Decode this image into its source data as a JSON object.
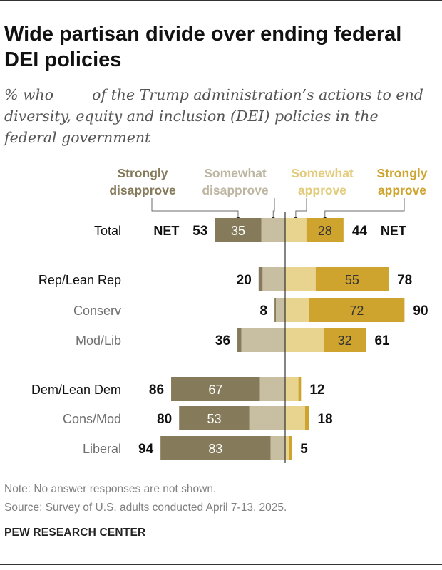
{
  "title": "Wide partisan divide over ending federal DEI policies",
  "subtitle": "% who ____ of the Trump administration’s actions to end diversity, equity and inclusion (DEI) policies in the federal government",
  "colors": {
    "strongly_disapprove": "#857a5a",
    "somewhat_disapprove": "#c8bea2",
    "somewhat_approve": "#e8d48f",
    "strongly_approve": "#cfa42e"
  },
  "chart_data": {
    "type": "bar",
    "subtype": "diverging-stacked",
    "title": "Wide partisan divide over ending federal DEI policies",
    "legend": [
      {
        "key": "strongly_disapprove",
        "lines": [
          "Strongly",
          "disapprove"
        ]
      },
      {
        "key": "somewhat_disapprove",
        "lines": [
          "Somewhat",
          "disapprove"
        ]
      },
      {
        "key": "somewhat_approve",
        "lines": [
          "Somewhat",
          "approve"
        ]
      },
      {
        "key": "strongly_approve",
        "lines": [
          "Strongly",
          "approve"
        ]
      }
    ],
    "net_label": "NET",
    "categories": [
      "Total",
      "Rep/Lean Rep",
      "Conserv",
      "Mod/Lib",
      "Dem/Lean Dem",
      "Cons/Mod",
      "Liberal"
    ],
    "series": [
      {
        "name": "Strongly disapprove",
        "values": [
          35,
          3,
          1,
          3,
          67,
          53,
          83
        ]
      },
      {
        "name": "Somewhat disapprove",
        "values": [
          18,
          17,
          7,
          33,
          19,
          27,
          11
        ]
      },
      {
        "name": "Somewhat approve",
        "values": [
          16,
          23,
          18,
          29,
          10,
          15,
          3
        ]
      },
      {
        "name": "Strongly approve",
        "values": [
          28,
          55,
          72,
          32,
          2,
          3,
          2
        ]
      }
    ],
    "net_disapprove": [
      53,
      20,
      8,
      36,
      86,
      80,
      94
    ],
    "net_approve": [
      44,
      78,
      90,
      61,
      12,
      18,
      5
    ],
    "inner_labels_disapprove": [
      "35",
      "",
      "",
      "",
      "67",
      "53",
      "83"
    ],
    "inner_labels_approve": [
      "28",
      "55",
      "72",
      "32",
      "",
      "",
      ""
    ],
    "bold_categories": [
      "Total",
      "Rep/Lean Rep",
      "Dem/Lean Dem"
    ]
  },
  "note": "Note: No answer responses are not shown.",
  "source": "Source: Survey of U.S. adults conducted April 7-13, 2025.",
  "brand": "PEW RESEARCH CENTER"
}
